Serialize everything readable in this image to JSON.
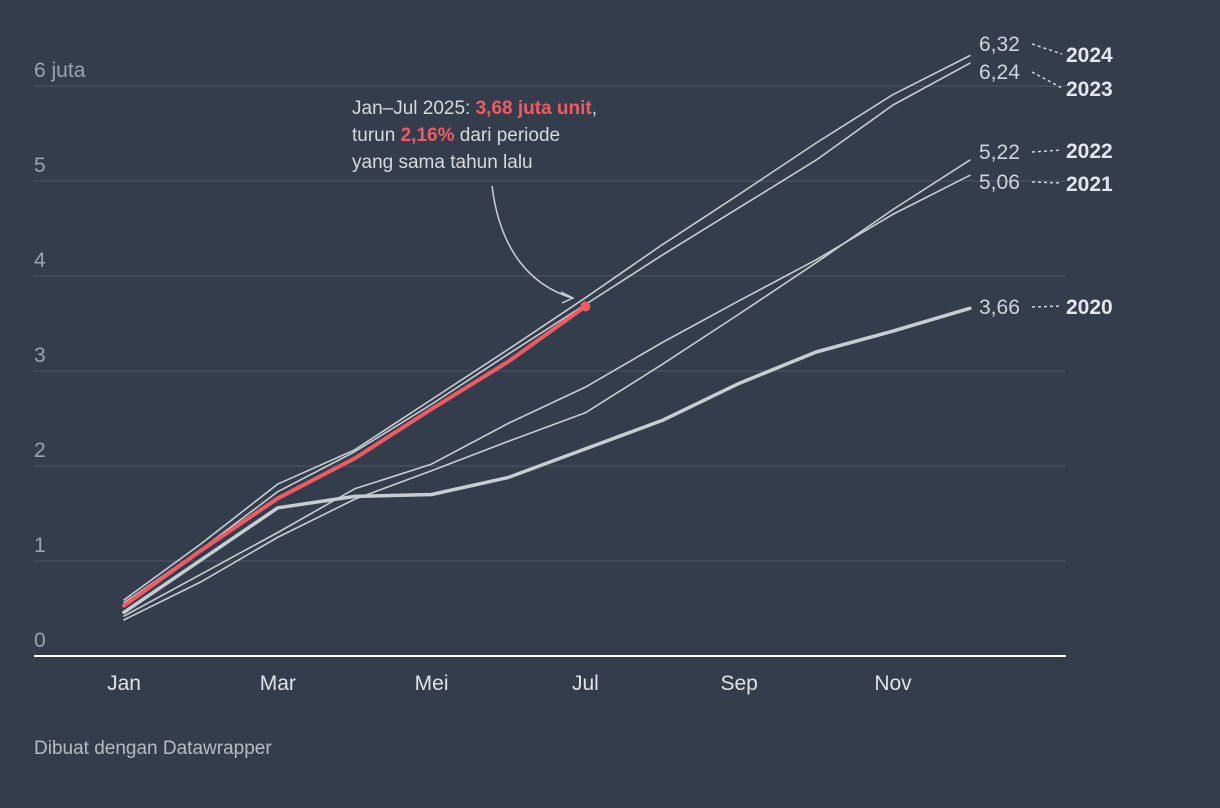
{
  "chart_data": {
    "type": "line",
    "title": "",
    "xlabel": "",
    "ylabel": "",
    "ylim": [
      0,
      6.5
    ],
    "y_ticks": [
      {
        "value": 0,
        "label": "0"
      },
      {
        "value": 1,
        "label": "1"
      },
      {
        "value": 2,
        "label": "2"
      },
      {
        "value": 3,
        "label": "3"
      },
      {
        "value": 4,
        "label": "4"
      },
      {
        "value": 5,
        "label": "5"
      },
      {
        "value": 6,
        "label": "6 juta"
      }
    ],
    "x_tick_labels": [
      {
        "month": 1,
        "label": "Jan"
      },
      {
        "month": 3,
        "label": "Mar"
      },
      {
        "month": 5,
        "label": "Mei"
      },
      {
        "month": 7,
        "label": "Jul"
      },
      {
        "month": 9,
        "label": "Sep"
      },
      {
        "month": 11,
        "label": "Nov"
      }
    ],
    "series": [
      {
        "name": "2024",
        "end_label": "6,32",
        "color": "#c6cdd3",
        "values": [
          0.59,
          1.18,
          1.81,
          2.17,
          2.7,
          3.23,
          3.77,
          4.33,
          4.86,
          5.4,
          5.91,
          6.32
        ]
      },
      {
        "name": "2023",
        "end_label": "6,24",
        "color": "#c6cdd3",
        "values": [
          0.56,
          1.12,
          1.73,
          2.15,
          2.65,
          3.18,
          3.7,
          4.22,
          4.72,
          5.22,
          5.8,
          6.24
        ]
      },
      {
        "name": "2022",
        "end_label": "5,22",
        "color": "#c6cdd3",
        "values": [
          0.38,
          0.78,
          1.25,
          1.65,
          1.95,
          2.26,
          2.56,
          3.07,
          3.6,
          4.14,
          4.7,
          5.22
        ]
      },
      {
        "name": "2021",
        "end_label": "5,06",
        "color": "#c6cdd3",
        "values": [
          0.42,
          0.86,
          1.3,
          1.76,
          2.02,
          2.45,
          2.83,
          3.3,
          3.74,
          4.17,
          4.65,
          5.06
        ]
      },
      {
        "name": "2020",
        "end_label": "3,66",
        "color": "#c6cdd3",
        "bold": true,
        "values": [
          0.46,
          1.01,
          1.56,
          1.68,
          1.7,
          1.88,
          2.18,
          2.48,
          2.87,
          3.2,
          3.42,
          3.66
        ]
      },
      {
        "name": "2025",
        "end_label": "",
        "color": "#f05b63",
        "highlight": true,
        "values": [
          0.53,
          1.11,
          1.66,
          2.08,
          2.6,
          3.1,
          3.68
        ]
      }
    ],
    "annotation": {
      "line1_pre": "Jan–Jul 2025: ",
      "line1_hl": "3,68 juta unit",
      "line1_post": ",",
      "line2_pre": "turun ",
      "line2_hl": "2,16%",
      "line2_post": " dari periode",
      "line3": "yang sama tahun lalu"
    }
  },
  "credit": "Dibuat dengan Datawrapper"
}
